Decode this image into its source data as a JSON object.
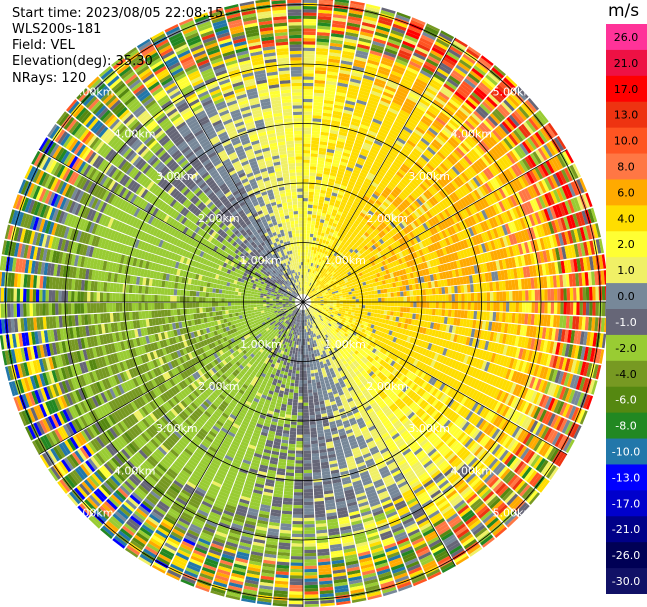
{
  "header": {
    "start_time": "Start time: 2023/08/05 22:08:15",
    "instrument": "WLS200s-181",
    "field": "Field: VEL",
    "elevation": "Elevation(deg): 35.30",
    "nrays": "NRays: 120"
  },
  "colorbar": {
    "unit": "m/s",
    "ticks": [
      "26.0",
      "21.0",
      "17.0",
      "13.0",
      "10.0",
      "8.0",
      "6.0",
      "4.0",
      "2.0",
      "1.0",
      "0.0",
      "-1.0",
      "-2.0",
      "-4.0",
      "-6.0",
      "-8.0",
      "-10.0",
      "-13.0",
      "-17.0",
      "-21.0",
      "-26.0",
      "-30.0"
    ],
    "colors": [
      "#ff3399",
      "#ee1144",
      "#ff0000",
      "#ee3311",
      "#ff5522",
      "#ff7744",
      "#ffaa00",
      "#ffdd00",
      "#ffff33",
      "#f0f066",
      "#778899",
      "#666677",
      "#99cc33",
      "#779922",
      "#558811",
      "#228822",
      "#2277aa",
      "#0000ff",
      "#0000cc",
      "#000088",
      "#000055",
      "#111166"
    ]
  },
  "chart_data": {
    "type": "heatmap",
    "projection": "PPI (plan position indicator)",
    "nrays": 120,
    "range_rings_km": [
      1,
      2,
      3,
      4,
      5
    ],
    "ring_labels": [
      "1.00km",
      "2.00km",
      "3.00km",
      "4.00km",
      "5.00km"
    ]
  }
}
